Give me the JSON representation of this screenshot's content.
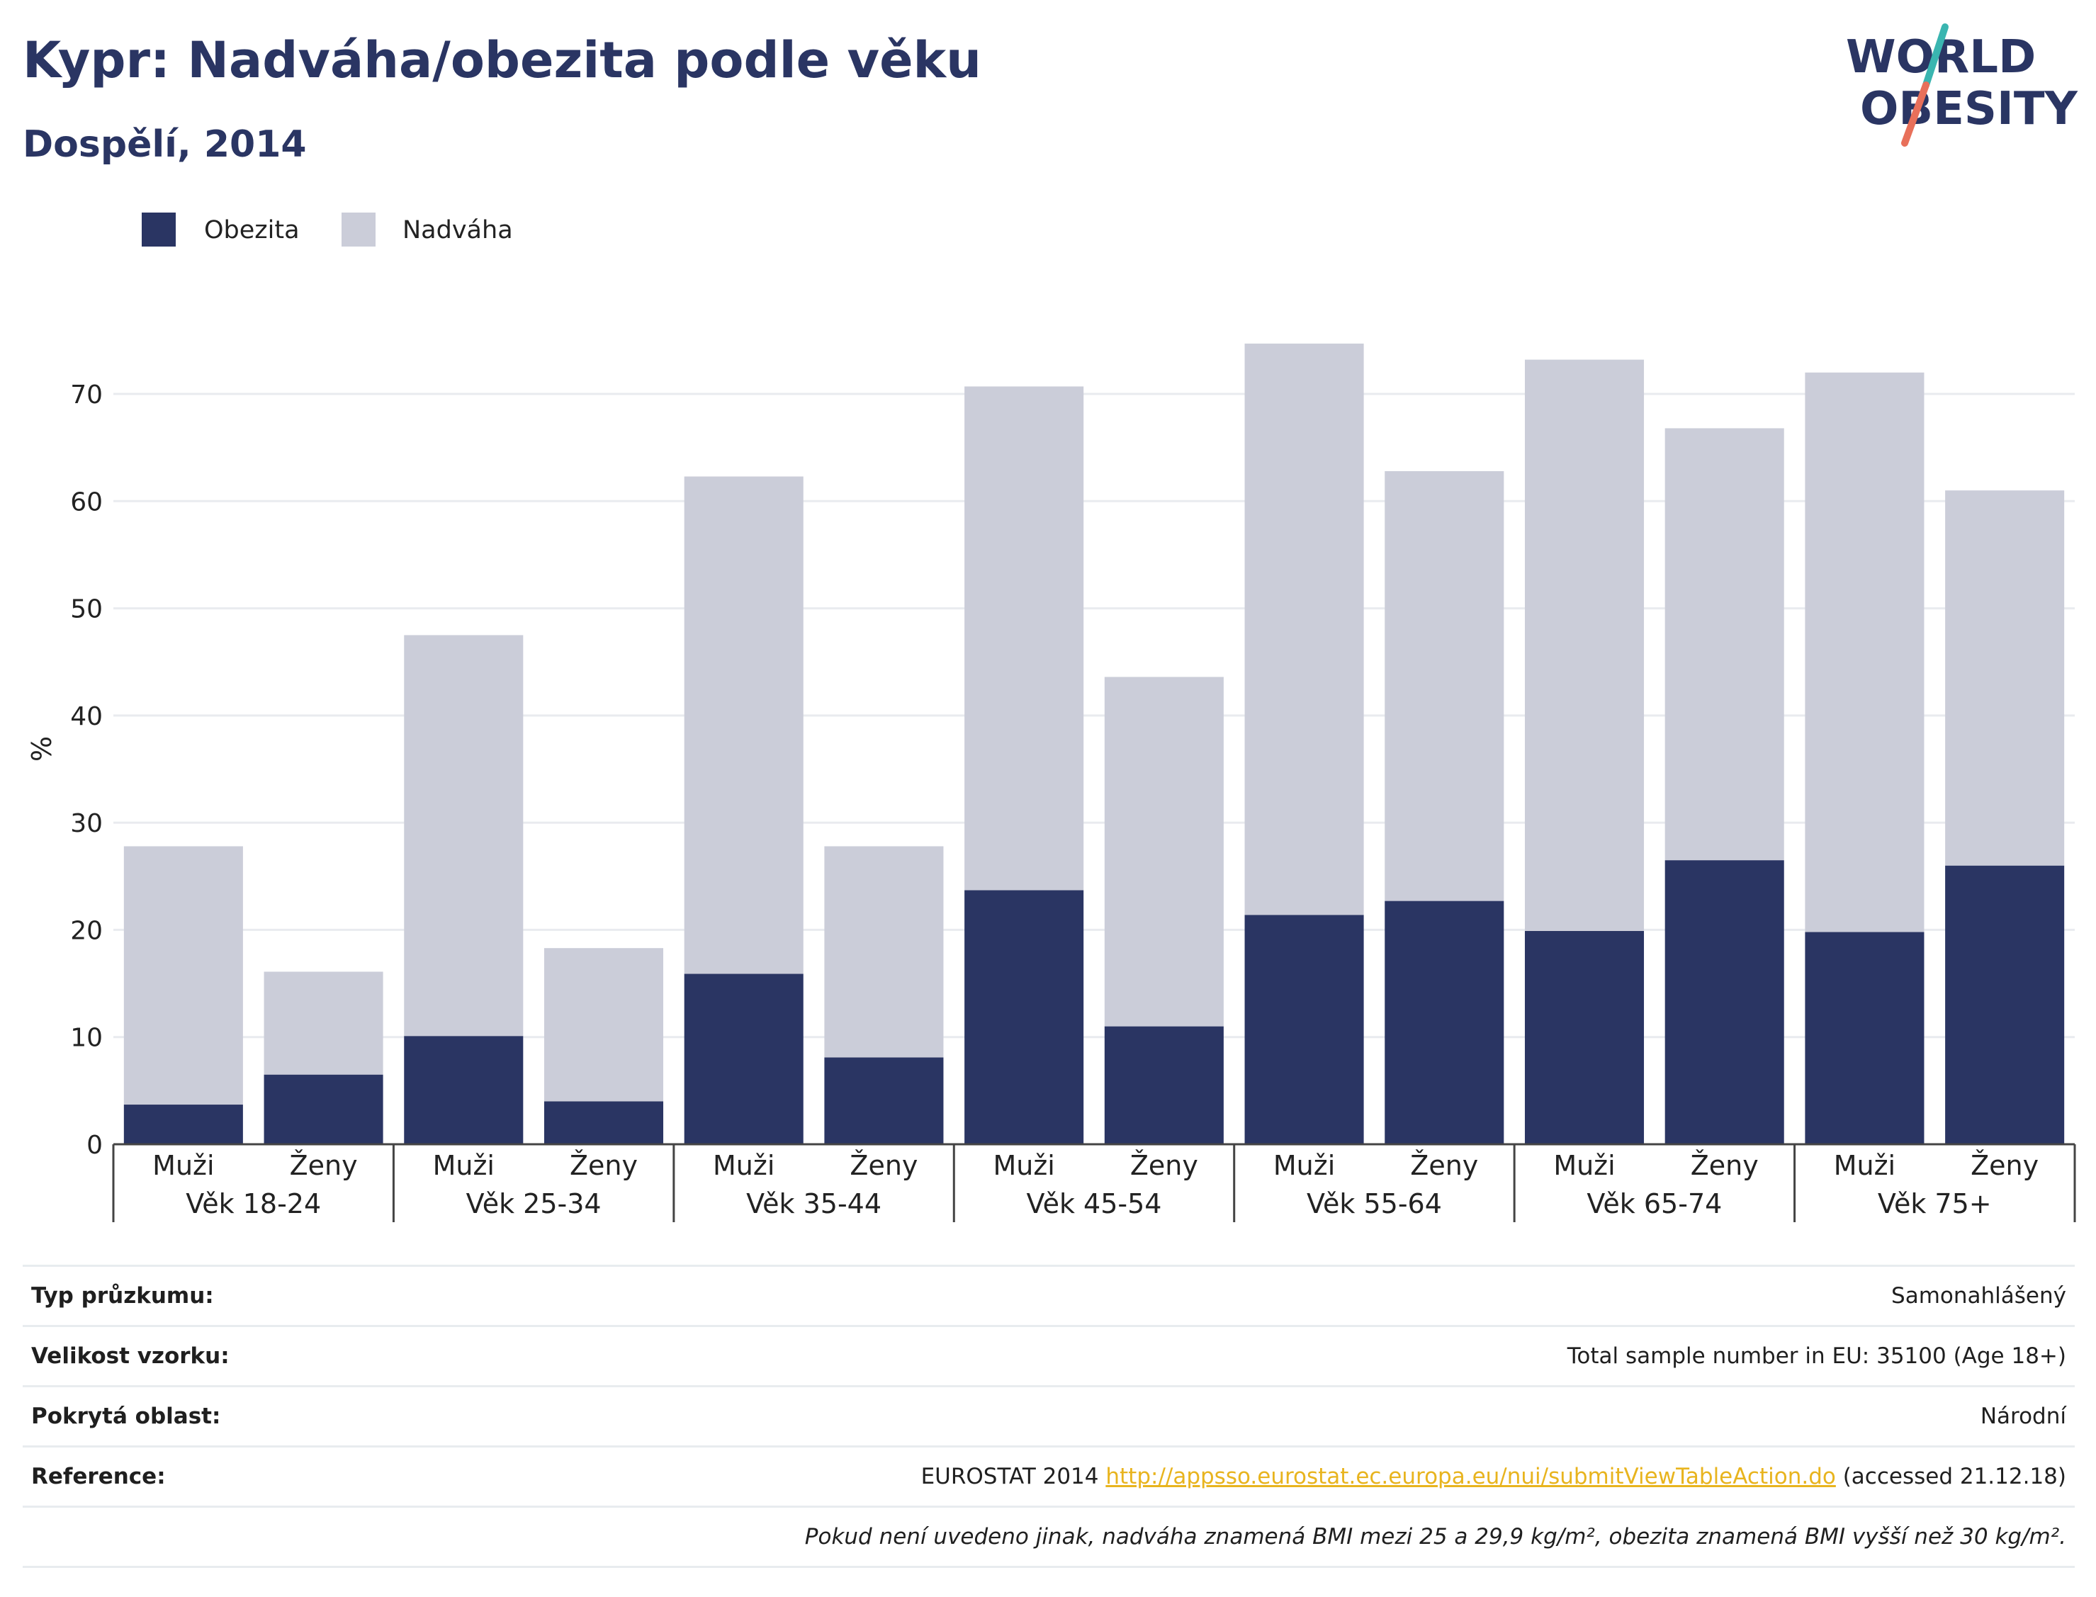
{
  "header": {
    "title": "Kypr: Nadváha/obezita podle věku",
    "subtitle": "Dospělí, 2014"
  },
  "logo": {
    "line1": "WORLD",
    "line2": "OBESITY"
  },
  "colors": {
    "obesity": "#2a3563",
    "overweight": "#cbcdd9",
    "title": "#2a3563",
    "link": "#e8b41e"
  },
  "chart_data": {
    "type": "bar",
    "stacked": true,
    "ylabel": "%",
    "ylim": [
      0,
      78
    ],
    "yticks": [
      0,
      10,
      20,
      30,
      40,
      50,
      60,
      70
    ],
    "grid": true,
    "legend_position": "top-left",
    "groups": [
      "Věk 18-24",
      "Věk 25-34",
      "Věk 35-44",
      "Věk 45-54",
      "Věk 55-64",
      "Věk 65-74",
      "Věk 75+"
    ],
    "sub_categories": [
      "Muži",
      "Ženy"
    ],
    "categories": [
      "Muži",
      "Ženy",
      "Muži",
      "Ženy",
      "Muži",
      "Ženy",
      "Muži",
      "Ženy",
      "Muži",
      "Ženy",
      "Muži",
      "Ženy",
      "Muži",
      "Ženy"
    ],
    "series": [
      {
        "name": "Obezita",
        "values": [
          3.7,
          6.5,
          10.1,
          4.0,
          15.9,
          8.1,
          23.7,
          11.0,
          21.4,
          22.7,
          19.9,
          26.5,
          19.8,
          26.0
        ]
      },
      {
        "name": "Nadváha",
        "values": [
          24.1,
          9.6,
          37.4,
          14.3,
          46.4,
          19.7,
          47.0,
          32.6,
          53.3,
          40.1,
          53.3,
          40.3,
          52.2,
          35.0
        ]
      }
    ]
  },
  "info": {
    "rows": [
      {
        "label": "Typ průzkumu:",
        "value": "Samonahlášený"
      },
      {
        "label": "Velikost vzorku:",
        "value": "Total sample number in EU: 35100 (Age 18+)"
      },
      {
        "label": "Pokrytá oblast:",
        "value": "Národní"
      }
    ],
    "reference": {
      "label": "Reference:",
      "prefix": "EUROSTAT 2014 ",
      "link": "http://appsso.eurostat.ec.europa.eu/nui/submitViewTableAction.do",
      "suffix": " (accessed 21.12.18)"
    },
    "note": "Pokud není uvedeno jinak, nadváha znamená BMI mezi 25 a 29,9 kg/m², obezita znamená BMI vyšší než 30 kg/m²."
  }
}
